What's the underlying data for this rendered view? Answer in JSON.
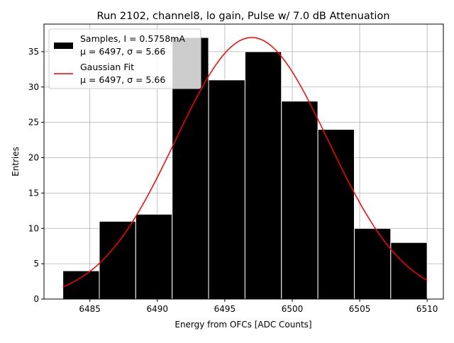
{
  "chart_data": {
    "type": "bar",
    "title": "Run 2102, channel8, lo gain, Pulse w/ 7.0 dB Attenuation",
    "xlabel": "Energy from OFCs [ADC Counts]",
    "ylabel": "Entries",
    "xlim": [
      6481.6,
      6511.2
    ],
    "ylim": [
      0,
      38.9
    ],
    "xticks": [
      6485,
      6490,
      6495,
      6500,
      6505,
      6510
    ],
    "yticks": [
      0,
      5,
      10,
      15,
      20,
      25,
      30,
      35
    ],
    "grid": true,
    "bin_edges": [
      6483.0,
      6485.7,
      6488.4,
      6491.1,
      6493.8,
      6496.5,
      6499.2,
      6501.9,
      6504.6,
      6507.3,
      6510.0
    ],
    "values": [
      4,
      11,
      12,
      37,
      31,
      35,
      28,
      24,
      10,
      8
    ],
    "fit": {
      "name": "Gaussian Fit",
      "mu": 6497.0,
      "sigma": 5.66,
      "amplitude": 37.0,
      "x_range": [
        6483.0,
        6510.0
      ],
      "color": "#ff0000"
    },
    "bar_color": "#000000",
    "legend": {
      "position": "top-left",
      "entries": [
        {
          "line1": "Samples, I = 0.5758mA",
          "line2": "μ = 6497, σ = 5.66"
        },
        {
          "line1": "Gaussian Fit",
          "line2": "μ = 6497, σ = 5.66"
        }
      ]
    }
  }
}
